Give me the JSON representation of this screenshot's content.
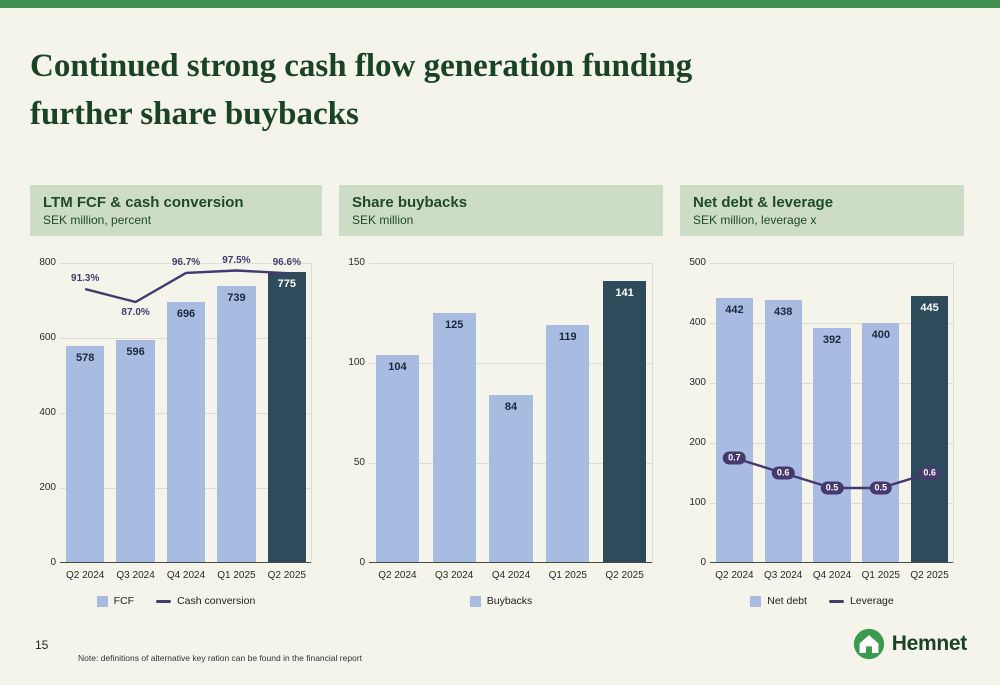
{
  "slide": {
    "title": "Continued strong cash flow generation funding\nfurther share buybacks",
    "page_number": "15",
    "note": "Note: definitions of alternative key ration can be found in the financial report",
    "logo_text": "Hemnet"
  },
  "colors": {
    "accent_green": "#40914f",
    "title_green": "#1a4326",
    "header_bg": "#cddcc6",
    "bar_light": "#a8bce2",
    "bar_dark": "#2d4b5a",
    "line_purple": "#46396e"
  },
  "chart_data": [
    {
      "type": "bar",
      "title": "LTM FCF & cash conversion",
      "subtitle": "SEK million, percent",
      "categories": [
        "Q2 2024",
        "Q3 2024",
        "Q4 2024",
        "Q1 2025",
        "Q2 2025"
      ],
      "series": [
        {
          "name": "FCF",
          "kind": "bar",
          "values": [
            578,
            596,
            696,
            739,
            775
          ]
        },
        {
          "name": "Cash conversion",
          "kind": "line",
          "values": [
            91.3,
            87.0,
            96.7,
            97.5,
            96.6
          ],
          "labels": [
            "91.3%",
            "87.0%",
            "96.7%",
            "97.5%",
            "96.6%"
          ],
          "label_style": "text",
          "label_positions": [
            "above",
            "below",
            "above",
            "above",
            "above"
          ],
          "y2lim": [
            0,
            100
          ]
        }
      ],
      "ylim": [
        0,
        800
      ],
      "yticks": [
        0,
        200,
        400,
        600,
        800
      ],
      "highlight_last": true,
      "legend": [
        "FCF",
        "Cash conversion"
      ],
      "legend_position": "bottom",
      "grid": true
    },
    {
      "type": "bar",
      "title": "Share buybacks",
      "subtitle": "SEK million",
      "categories": [
        "Q2 2024",
        "Q3 2024",
        "Q4 2024",
        "Q1 2025",
        "Q2 2025"
      ],
      "series": [
        {
          "name": "Buybacks",
          "kind": "bar",
          "values": [
            104,
            125,
            84,
            119,
            141
          ]
        }
      ],
      "ylim": [
        0,
        150
      ],
      "yticks": [
        0,
        50,
        100,
        150
      ],
      "highlight_last": true,
      "legend": [
        "Buybacks"
      ],
      "legend_position": "bottom",
      "grid": true
    },
    {
      "type": "bar",
      "title": "Net debt & leverage",
      "subtitle": "SEK million, leverage x",
      "categories": [
        "Q2 2024",
        "Q3 2024",
        "Q4 2024",
        "Q1 2025",
        "Q2 2025"
      ],
      "series": [
        {
          "name": "Net debt",
          "kind": "bar",
          "values": [
            442,
            438,
            392,
            400,
            445
          ]
        },
        {
          "name": "Leverage",
          "kind": "line",
          "values": [
            0.7,
            0.6,
            0.5,
            0.5,
            0.6
          ],
          "labels": [
            "0.7",
            "0.6",
            "0.5",
            "0.5",
            "0.6"
          ],
          "label_style": "pill",
          "label_positions": [
            "center",
            "center",
            "center",
            "center",
            "center"
          ],
          "y2lim": [
            0,
            2
          ]
        }
      ],
      "ylim": [
        0,
        500
      ],
      "yticks": [
        0,
        100,
        200,
        300,
        400,
        500
      ],
      "highlight_last": true,
      "legend": [
        "Net debt",
        "Leverage"
      ],
      "legend_position": "bottom",
      "grid": true
    }
  ]
}
